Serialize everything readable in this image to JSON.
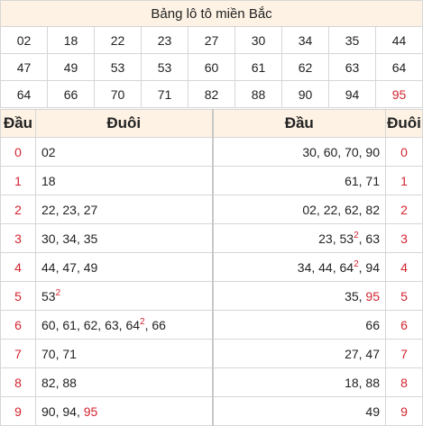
{
  "title": "Bảng lô tô miền Bắc",
  "numbers": [
    [
      "02",
      "18",
      "22",
      "23",
      "27",
      "30",
      "34",
      "35",
      "44"
    ],
    [
      "47",
      "49",
      "53",
      "53",
      "60",
      "61",
      "62",
      "63",
      "64"
    ],
    [
      "64",
      "66",
      "70",
      "71",
      "82",
      "88",
      "90",
      "94",
      "95"
    ]
  ],
  "highlight_color": "#d3242f",
  "headers": {
    "left_head": "Đầu",
    "left_tail": "Đuôi",
    "right_head": "Đầu",
    "right_tail": "Đuôi"
  },
  "rows": [
    {
      "digit": "0",
      "tail": "02",
      "head": "30, 60, 70, 90"
    },
    {
      "digit": "1",
      "tail": "18",
      "head": "61, 71"
    },
    {
      "digit": "2",
      "tail": "22, 23, 27",
      "head": "02, 22, 62, 82"
    },
    {
      "digit": "3",
      "tail": "30, 34, 35",
      "head": "23, 53², 63"
    },
    {
      "digit": "4",
      "tail": "44, 47, 49",
      "head": "34, 44, 64², 94"
    },
    {
      "digit": "5",
      "tail": "53²",
      "head": "35, 95"
    },
    {
      "digit": "6",
      "tail": "60, 61, 62, 63, 64², 66",
      "head": "66"
    },
    {
      "digit": "7",
      "tail": "70, 71",
      "head": "27, 47"
    },
    {
      "digit": "8",
      "tail": "82, 88",
      "head": "18, 88"
    },
    {
      "digit": "9",
      "tail": "90, 94, 95",
      "head": "49"
    }
  ]
}
